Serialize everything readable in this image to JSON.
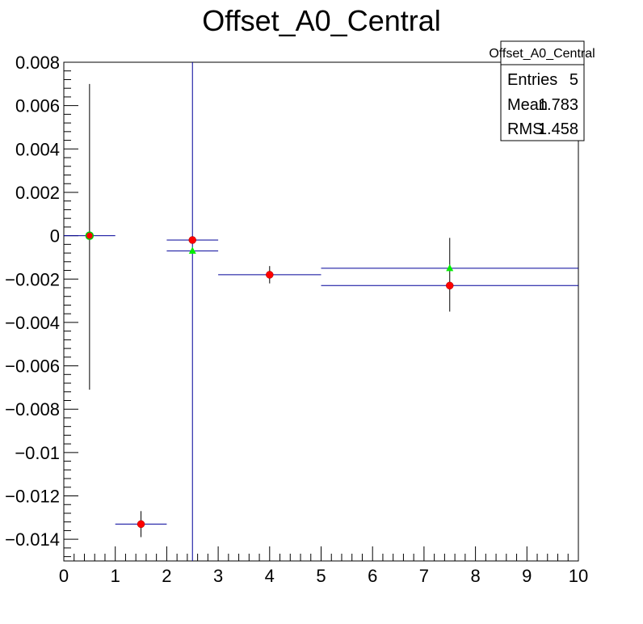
{
  "chart_data": {
    "type": "scatter",
    "title": "Offset_A0_Central",
    "xlabel": "",
    "ylabel": "",
    "xlim": [
      0,
      10
    ],
    "ylim": [
      -0.015,
      0.008
    ],
    "x_tick_labels": [
      "0",
      "1",
      "2",
      "3",
      "4",
      "5",
      "6",
      "7",
      "8",
      "9",
      "10"
    ],
    "y_tick_labels": [
      "0.008",
      "0.006",
      "0.004",
      "0.002",
      "0",
      "−0.002",
      "−0.004",
      "−0.006",
      "−0.008",
      "−0.01",
      "−0.012",
      "−0.014"
    ],
    "grid": false,
    "series": [
      {
        "color": "#000099",
        "marker": "red-circle",
        "marker_color": "#ff0000",
        "points": [
          {
            "x": 0.5,
            "y": 0.0,
            "x_err": 0.5,
            "y_err_low": 0.0071,
            "y_err_high": 0.007
          },
          {
            "x": 1.5,
            "y": -0.0133,
            "x_err": 0.5,
            "y_err_low": 0.0006,
            "y_err_high": 0.0006
          },
          {
            "x": 2.5,
            "y": -0.0002,
            "x_err": 0.5,
            "y_err_low": 0.0148,
            "y_err_high": 0.0082
          },
          {
            "x": 4.0,
            "y": -0.0018,
            "x_err": 1.0,
            "y_err_low": 0.0004,
            "y_err_high": 0.0004
          },
          {
            "x": 7.5,
            "y": -0.0023,
            "x_err": 2.5,
            "y_err_low": 0.0012,
            "y_err_high": 0.0022
          }
        ]
      },
      {
        "color": "#000099",
        "marker": "green-triangle",
        "marker_color": "#00ee00",
        "points": [
          {
            "x": 0.5,
            "y": 0.0,
            "x_err": 0.0
          },
          {
            "x": 2.5,
            "y": -0.0007,
            "x_err": 0.5
          },
          {
            "x": 7.5,
            "y": -0.0015,
            "x_err": 2.5
          }
        ]
      }
    ]
  },
  "stats_box": {
    "name": "Offset_A0_Central",
    "rows": [
      {
        "label": "Entries",
        "value": "5"
      },
      {
        "label": "Mean",
        "value": "1.783"
      },
      {
        "label": "RMS",
        "value": "1.458"
      }
    ]
  }
}
